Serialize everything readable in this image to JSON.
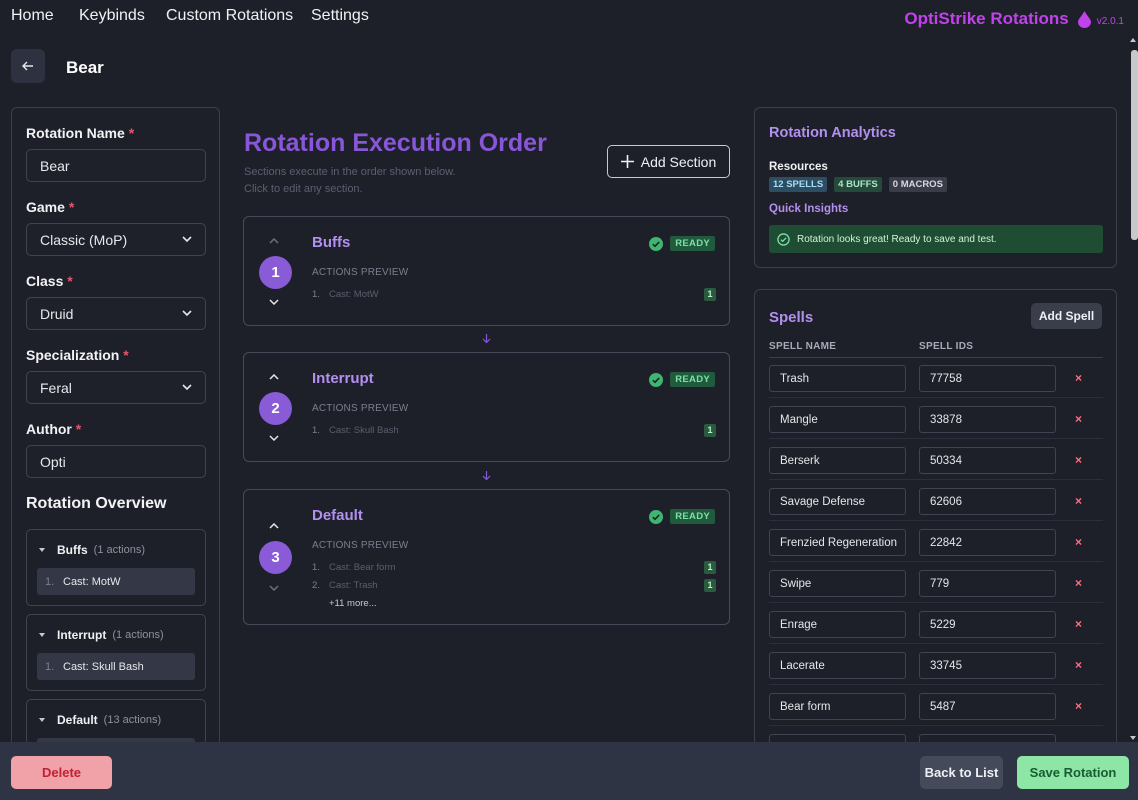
{
  "nav": {
    "links": [
      "Home",
      "Keybinds",
      "Custom Rotations",
      "Settings"
    ],
    "brand": "OptiStrike Rotations",
    "version": "v2.0.1"
  },
  "page": {
    "title": "Bear"
  },
  "form": {
    "rotation_name": {
      "label": "Rotation Name",
      "value": "Bear"
    },
    "game": {
      "label": "Game",
      "value": "Classic (MoP)"
    },
    "class": {
      "label": "Class",
      "value": "Druid"
    },
    "specialization": {
      "label": "Specialization",
      "value": "Feral"
    },
    "author": {
      "label": "Author",
      "value": "Opti"
    },
    "required_mark": "*"
  },
  "overview": {
    "title": "Rotation Overview",
    "sections": [
      {
        "name": "Buffs",
        "count": "(1 actions)",
        "item_num": "1.",
        "item": "Cast: MotW"
      },
      {
        "name": "Interrupt",
        "count": "(1 actions)",
        "item_num": "1.",
        "item": "Cast: Skull Bash"
      },
      {
        "name": "Default",
        "count": "(13 actions)"
      }
    ]
  },
  "execution": {
    "title": "Rotation Execution Order",
    "subtitle_line1": "Sections execute in the order shown below.",
    "subtitle_line2": "Click to edit any section.",
    "add_section": "Add Section",
    "preview_label": "ACTIONS PREVIEW",
    "status": "READY",
    "sections": [
      {
        "number": "1",
        "name": "Buffs",
        "actions": [
          {
            "n": "1.",
            "text": "Cast: MotW",
            "priority": "1"
          }
        ]
      },
      {
        "number": "2",
        "name": "Interrupt",
        "actions": [
          {
            "n": "1.",
            "text": "Cast: Skull Bash",
            "priority": "1"
          }
        ]
      },
      {
        "number": "3",
        "name": "Default",
        "actions": [
          {
            "n": "1.",
            "text": "Cast: Bear form",
            "priority": "1"
          },
          {
            "n": "2.",
            "text": "Cast: Trash",
            "priority": "1"
          }
        ],
        "more": "+11 more..."
      }
    ]
  },
  "analytics": {
    "title": "Rotation Analytics",
    "resources_label": "Resources",
    "spells_badge": "12 SPELLS",
    "buffs_badge": "4 BUFFS",
    "macros_badge": "0 MACROS",
    "insights_label": "Quick Insights",
    "insight_text": "Rotation looks great! Ready to save and test."
  },
  "spells": {
    "title": "Spells",
    "add_button": "Add Spell",
    "col_name": "SPELL NAME",
    "col_ids": "SPELL IDS",
    "delete_glyph": "×",
    "rows": [
      {
        "name": "Trash",
        "id": "77758"
      },
      {
        "name": "Mangle",
        "id": "33878"
      },
      {
        "name": "Berserk",
        "id": "50334"
      },
      {
        "name": "Savage Defense",
        "id": "62606"
      },
      {
        "name": "Frenzied Regeneration",
        "id": "22842"
      },
      {
        "name": "Swipe",
        "id": "779"
      },
      {
        "name": "Enrage",
        "id": "5229"
      },
      {
        "name": "Lacerate",
        "id": "33745"
      },
      {
        "name": "Bear form",
        "id": "5487"
      }
    ]
  },
  "footer": {
    "delete": "Delete",
    "back": "Back to List",
    "save": "Save Rotation"
  },
  "colors": {
    "accent_purple": "#8856d8",
    "brand_magenta": "#c142ea",
    "ready_green": "#7ee0a8",
    "delete_red": "#f1a1a8",
    "save_green": "#8ee6a6"
  },
  "icons": {
    "back": "arrow-left-icon",
    "brand": "drop-icon",
    "dropdown": "chevron-down-icon",
    "status": "check-circle-icon"
  }
}
